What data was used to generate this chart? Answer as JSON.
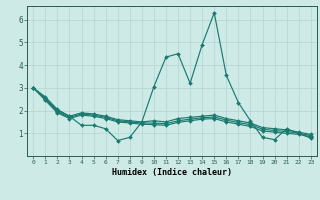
{
  "bg_color": "#ceeae7",
  "grid_color": "#b8d8d4",
  "line_color": "#1a7a6e",
  "xlabel": "Humidex (Indice chaleur)",
  "xlim": [
    -0.5,
    23.5
  ],
  "ylim": [
    0,
    6.6
  ],
  "yticks": [
    1,
    2,
    3,
    4,
    5,
    6
  ],
  "xticks": [
    0,
    1,
    2,
    3,
    4,
    5,
    6,
    7,
    8,
    9,
    10,
    11,
    12,
    13,
    14,
    15,
    16,
    17,
    18,
    19,
    20,
    21,
    22,
    23
  ],
  "series1_x": [
    0,
    1,
    2,
    3,
    4,
    5,
    6,
    7,
    8,
    9,
    10,
    11,
    12,
    13,
    14,
    15,
    16,
    17,
    18,
    19,
    20,
    21,
    22,
    23
  ],
  "series1_y": [
    3.0,
    2.6,
    2.05,
    1.75,
    1.35,
    1.35,
    1.2,
    0.68,
    0.82,
    1.5,
    3.05,
    4.35,
    4.5,
    3.2,
    4.9,
    6.3,
    3.55,
    2.35,
    1.55,
    0.82,
    0.72,
    1.2,
    1.0,
    0.78
  ],
  "series2_x": [
    0,
    1,
    2,
    3,
    4,
    5,
    6,
    7,
    8,
    9,
    10,
    11,
    12,
    13,
    14,
    15,
    16,
    17,
    18,
    19,
    20,
    21,
    22,
    23
  ],
  "series2_y": [
    3.0,
    2.55,
    2.0,
    1.75,
    1.9,
    1.85,
    1.75,
    1.6,
    1.55,
    1.5,
    1.55,
    1.5,
    1.65,
    1.7,
    1.75,
    1.8,
    1.65,
    1.55,
    1.45,
    1.25,
    1.2,
    1.15,
    1.05,
    0.95
  ],
  "series3_x": [
    0,
    1,
    2,
    3,
    4,
    5,
    6,
    7,
    8,
    9,
    10,
    11,
    12,
    13,
    14,
    15,
    16,
    17,
    18,
    19,
    20,
    21,
    22,
    23
  ],
  "series3_y": [
    3.0,
    2.5,
    1.95,
    1.7,
    1.85,
    1.8,
    1.7,
    1.55,
    1.5,
    1.45,
    1.45,
    1.42,
    1.55,
    1.62,
    1.68,
    1.72,
    1.58,
    1.47,
    1.38,
    1.18,
    1.12,
    1.08,
    1.0,
    0.9
  ],
  "series4_x": [
    0,
    1,
    2,
    3,
    4,
    5,
    6,
    7,
    8,
    9,
    10,
    11,
    12,
    13,
    14,
    15,
    16,
    17,
    18,
    19,
    20,
    21,
    22,
    23
  ],
  "series4_y": [
    3.0,
    2.45,
    1.9,
    1.65,
    1.8,
    1.75,
    1.65,
    1.5,
    1.45,
    1.4,
    1.38,
    1.35,
    1.48,
    1.55,
    1.62,
    1.65,
    1.5,
    1.4,
    1.3,
    1.1,
    1.05,
    1.0,
    0.95,
    0.85
  ]
}
